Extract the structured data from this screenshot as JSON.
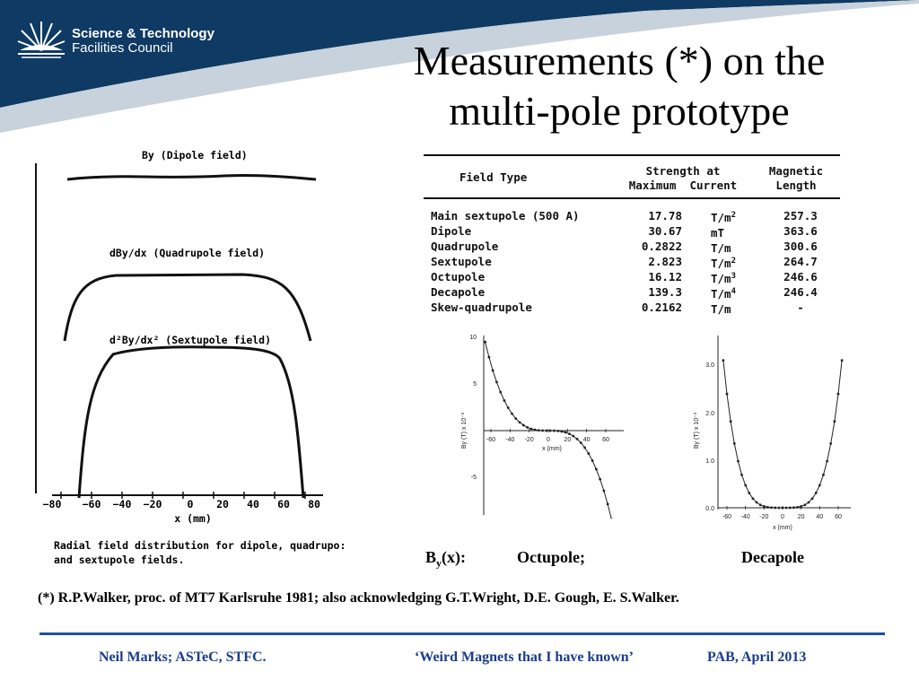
{
  "logo": {
    "line1": "Science & Technology",
    "line2": "Facilities Council"
  },
  "title": {
    "line1": "Measurements (*) on the",
    "line2": "multi-pole prototype"
  },
  "left_figure": {
    "label_dipole": "By (Dipole field)",
    "label_quad": "dBy/dx (Quadrupole field)",
    "label_sext": "d²By/dx² (Sextupole field)",
    "x_ticks": [
      "−80",
      "−60",
      "−40",
      "−20",
      "0",
      "20",
      "40",
      "60",
      "80"
    ],
    "x_label": "x (mm)",
    "caption_line1": "Radial field distribution for dipole, quadrupo:",
    "caption_line2": "and sextupole fields."
  },
  "table": {
    "headers": {
      "field_type": "Field Type",
      "strength_line1": "Strength at",
      "strength_line2": "Maximum  Current",
      "length_line1": "Magnetic",
      "length_line2": "Length"
    },
    "rows": [
      {
        "type": "Main sextupole (500 A)",
        "value": "17.78",
        "unit": "T/m",
        "sup": "2",
        "length": "257.3"
      },
      {
        "type": "Dipole",
        "value": "30.67",
        "unit": "mT",
        "sup": "",
        "length": "363.6"
      },
      {
        "type": "Quadrupole",
        "value": "0.2822",
        "unit": "T/m",
        "sup": "",
        "length": "300.6"
      },
      {
        "type": "Sextupole",
        "value": "2.823",
        "unit": "T/m",
        "sup": "2",
        "length": "264.7"
      },
      {
        "type": "Octupole",
        "value": "16.12",
        "unit": "T/m",
        "sup": "3",
        "length": "246.6"
      },
      {
        "type": "Decapole",
        "value": "139.3",
        "unit": "T/m",
        "sup": "4",
        "length": "246.4"
      },
      {
        "type": "Skew-quadrupole",
        "value": "0.2162",
        "unit": "T/m",
        "sup": "",
        "length": "-"
      }
    ]
  },
  "octupole_plot": {
    "y_label": "By (T) x 10⁻³",
    "x_label": "x (mm)",
    "y_ticks": [
      "10",
      "5",
      "-5",
      "10"
    ],
    "x_ticks": [
      "-60",
      "-40",
      "-20",
      "0",
      "20",
      "40",
      "60"
    ]
  },
  "decapole_plot": {
    "y_label": "By (T) x 10⁻³",
    "x_label": "x (mm)",
    "y_ticks": [
      "3.0",
      "2.0",
      "1.0",
      "0.0"
    ],
    "x_ticks": [
      "-60",
      "-40",
      "-20",
      "0",
      "20",
      "40",
      "60"
    ]
  },
  "captions": {
    "by_prefix": "B",
    "by_sub": "y",
    "by_suffix": "(x):",
    "octupole": "Octupole;",
    "decapole": "Decapole"
  },
  "reference": "(*) R.P.Walker, proc. of MT7 Karlsruhe 1981;  also acknowledging G.T.Wright, D.E. Gough, E. S.Walker.",
  "footer": {
    "author": "Neil Marks; ASTeC, STFC.",
    "talk": "‘Weird Magnets that I have known’",
    "event": "PAB, April 2013"
  },
  "colors": {
    "banner": "#0e3a63",
    "footer_text": "#1a3c8c",
    "footer_rule": "#1f4ea0"
  }
}
